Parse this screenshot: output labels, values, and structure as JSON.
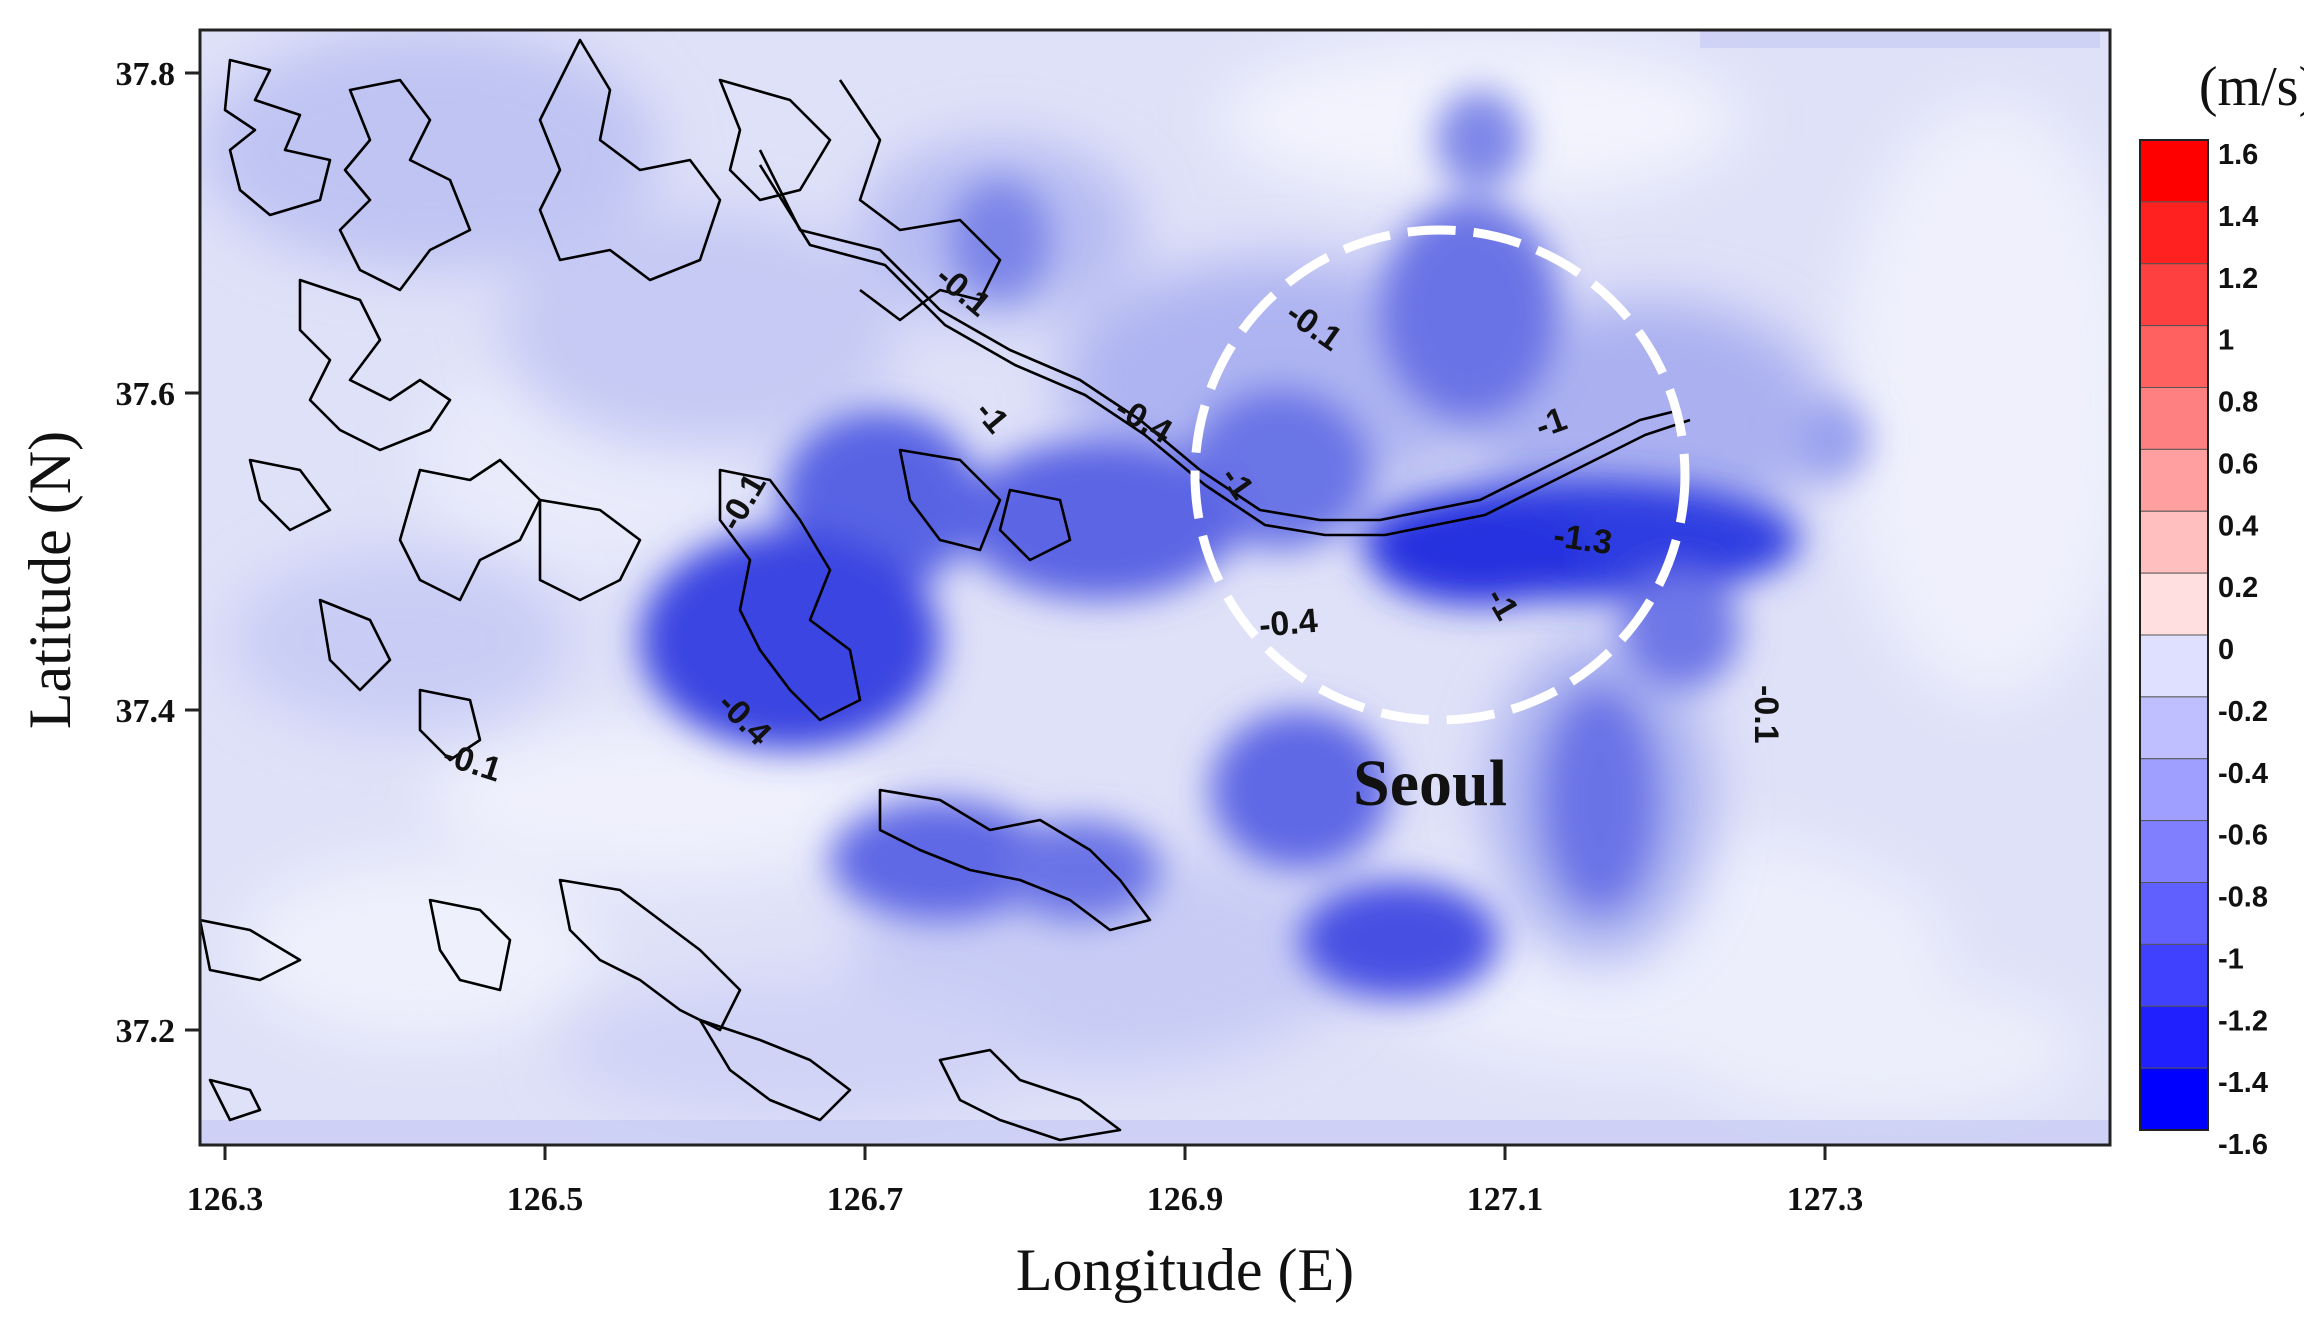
{
  "map": {
    "x_axis_title": "Longitude (E)",
    "y_axis_title": "Latitude (N)",
    "x_ticks": [
      "126.3",
      "126.5",
      "126.7",
      "126.9",
      "127.1",
      "127.3"
    ],
    "y_ticks": [
      "37.8",
      "37.6",
      "37.4",
      "37.2"
    ],
    "city_label": "Seoul",
    "contour_labels": [
      "-0.1",
      "-0.4",
      "-1",
      "-1.3",
      "-0.4",
      "-1",
      "-0.1",
      "-0.1",
      "-0.4",
      "-0.1",
      "-0.1",
      "-1",
      "-1"
    ],
    "highlight_color": "#ffffff",
    "field_base_color": "#dde0f8"
  },
  "colorbar": {
    "unit": "(m/s)",
    "labels": [
      "1.6",
      "1.4",
      "1.2",
      "1",
      "0.8",
      "0.6",
      "0.4",
      "0.2",
      "0",
      "-0.2",
      "-0.4",
      "-0.6",
      "-0.8",
      "-1",
      "-1.2",
      "-1.4",
      "-1.6"
    ],
    "max_color": "#ff0000",
    "zero_color": "#ffffff",
    "min_color": "#0000ff"
  }
}
